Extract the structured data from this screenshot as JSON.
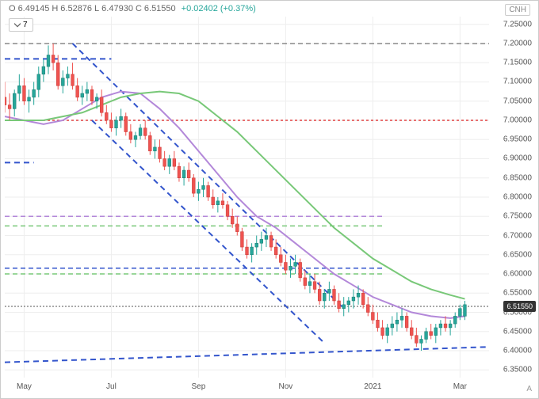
{
  "header": {
    "open_label": "O",
    "open": "6.49145",
    "high_label": "H",
    "high": "6.52876",
    "low_label": "L",
    "low": "6.47930",
    "close_label": "C",
    "close": "6.51550",
    "change": "+0.02402",
    "change_pct": "(+0.37%)",
    "change_color": "#26a69a"
  },
  "currency_label": "CNH",
  "dropdown_value": "7",
  "attribution": "A",
  "current_price": "6.51550",
  "chart": {
    "type": "candlestick",
    "xlim": [
      0,
      100
    ],
    "ylim": [
      6.33,
      7.27
    ],
    "background_color": "#ffffff",
    "grid_color": "#eeeeee",
    "y_ticks": [
      6.35,
      6.4,
      6.45,
      6.5,
      6.55,
      6.6,
      6.65,
      6.7,
      6.75,
      6.8,
      6.85,
      6.9,
      6.95,
      7.0,
      7.05,
      7.1,
      7.15,
      7.2,
      7.25
    ],
    "y_tick_labels": [
      "6.35000",
      "6.40000",
      "6.45000",
      "6.50000",
      "6.55000",
      "6.60000",
      "6.65000",
      "6.70000",
      "6.75000",
      "6.80000",
      "6.85000",
      "6.90000",
      "6.95000",
      "7.00000",
      "7.05000",
      "7.10000",
      "7.15000",
      "7.20000",
      "7.25000"
    ],
    "x_ticks": [
      4,
      22,
      40,
      58,
      76,
      94
    ],
    "x_tick_labels": [
      "May",
      "Jul",
      "Sep",
      "Nov",
      "2021",
      "Mar"
    ],
    "candle_up_color": "#26a69a",
    "candle_down_color": "#ef5350",
    "candle_up_border": "#1a7a6f",
    "candle_down_border": "#c83b38",
    "wick_color_up": "#26a69a",
    "wick_color_down": "#ef5350",
    "moving_averages": [
      {
        "color": "#b388d9",
        "width": 2,
        "points": [
          [
            0,
            7.01
          ],
          [
            4,
            7.0
          ],
          [
            8,
            6.99
          ],
          [
            12,
            7.0
          ],
          [
            16,
            7.03
          ],
          [
            20,
            7.06
          ],
          [
            24,
            7.075
          ],
          [
            28,
            7.07
          ],
          [
            32,
            7.03
          ],
          [
            36,
            6.98
          ],
          [
            40,
            6.92
          ],
          [
            44,
            6.86
          ],
          [
            48,
            6.8
          ],
          [
            52,
            6.75
          ],
          [
            56,
            6.72
          ],
          [
            60,
            6.68
          ],
          [
            64,
            6.64
          ],
          [
            68,
            6.6
          ],
          [
            72,
            6.57
          ],
          [
            76,
            6.54
          ],
          [
            80,
            6.52
          ],
          [
            84,
            6.5
          ],
          [
            88,
            6.49
          ],
          [
            92,
            6.485
          ],
          [
            95,
            6.49
          ]
        ]
      },
      {
        "color": "#78c878",
        "width": 2,
        "points": [
          [
            0,
            7.0
          ],
          [
            4,
            7.0
          ],
          [
            8,
            7.0
          ],
          [
            12,
            7.01
          ],
          [
            16,
            7.02
          ],
          [
            20,
            7.04
          ],
          [
            24,
            7.06
          ],
          [
            28,
            7.07
          ],
          [
            32,
            7.075
          ],
          [
            36,
            7.07
          ],
          [
            40,
            7.05
          ],
          [
            44,
            7.01
          ],
          [
            48,
            6.97
          ],
          [
            52,
            6.92
          ],
          [
            56,
            6.87
          ],
          [
            60,
            6.82
          ],
          [
            64,
            6.77
          ],
          [
            68,
            6.72
          ],
          [
            72,
            6.68
          ],
          [
            76,
            6.64
          ],
          [
            80,
            6.61
          ],
          [
            84,
            6.58
          ],
          [
            88,
            6.56
          ],
          [
            92,
            6.545
          ],
          [
            95,
            6.535
          ]
        ]
      }
    ],
    "horizontal_lines": [
      {
        "y": 7.2,
        "color": "#888888",
        "dash": "6,4",
        "width": 1.5
      },
      {
        "y": 7.0,
        "color": "#e04040",
        "dash": "3,3",
        "width": 1.5
      },
      {
        "y": 6.75,
        "color": "#b388d9",
        "dash": "6,4",
        "width": 1.5,
        "x_end": 78
      },
      {
        "y": 6.725,
        "color": "#78c878",
        "dash": "6,4",
        "width": 1.5,
        "x_end": 78
      },
      {
        "y": 6.615,
        "color": "#3355cc",
        "dash": "6,4",
        "width": 1.5,
        "x_end": 78
      },
      {
        "y": 6.6,
        "color": "#78c878",
        "dash": "6,4",
        "width": 1.5,
        "x_end": 78
      },
      {
        "y": 6.5155,
        "color": "#555555",
        "dash": "2,2",
        "width": 1
      }
    ],
    "channel_lines": [
      {
        "x1": 0,
        "y1": 7.16,
        "x2": 22,
        "y2": 7.16,
        "color": "#3355cc",
        "dash": "7,5",
        "width": 2
      },
      {
        "x1": 0,
        "y1": 6.89,
        "x2": 6,
        "y2": 6.89,
        "color": "#3355cc",
        "dash": "7,5",
        "width": 2
      },
      {
        "x1": 14,
        "y1": 7.2,
        "x2": 70,
        "y2": 6.51,
        "color": "#3355cc",
        "dash": "7,5",
        "width": 2
      },
      {
        "x1": 18,
        "y1": 7.0,
        "x2": 66,
        "y2": 6.42,
        "color": "#3355cc",
        "dash": "7,5",
        "width": 2
      },
      {
        "x1": 0,
        "y1": 6.37,
        "x2": 100,
        "y2": 6.41,
        "color": "#3355cc",
        "dash": "7,5",
        "width": 2
      }
    ],
    "candles": [
      {
        "x": 0,
        "o": 7.06,
        "h": 7.1,
        "l": 7.02,
        "c": 7.04
      },
      {
        "x": 1,
        "o": 7.04,
        "h": 7.07,
        "l": 7.0,
        "c": 7.03
      },
      {
        "x": 2,
        "o": 7.03,
        "h": 7.08,
        "l": 7.01,
        "c": 7.07
      },
      {
        "x": 3,
        "o": 7.07,
        "h": 7.12,
        "l": 7.05,
        "c": 7.09
      },
      {
        "x": 4,
        "o": 7.09,
        "h": 7.11,
        "l": 7.04,
        "c": 7.05
      },
      {
        "x": 5,
        "o": 7.05,
        "h": 7.08,
        "l": 7.02,
        "c": 7.06
      },
      {
        "x": 6,
        "o": 7.06,
        "h": 7.1,
        "l": 7.04,
        "c": 7.08
      },
      {
        "x": 7,
        "o": 7.08,
        "h": 7.14,
        "l": 7.06,
        "c": 7.12
      },
      {
        "x": 8,
        "o": 7.12,
        "h": 7.16,
        "l": 7.1,
        "c": 7.14
      },
      {
        "x": 9,
        "o": 7.14,
        "h": 7.195,
        "l": 7.12,
        "c": 7.17
      },
      {
        "x": 10,
        "o": 7.17,
        "h": 7.2,
        "l": 7.13,
        "c": 7.15
      },
      {
        "x": 11,
        "o": 7.15,
        "h": 7.17,
        "l": 7.08,
        "c": 7.09
      },
      {
        "x": 12,
        "o": 7.09,
        "h": 7.13,
        "l": 7.07,
        "c": 7.11
      },
      {
        "x": 13,
        "o": 7.11,
        "h": 7.14,
        "l": 7.09,
        "c": 7.12
      },
      {
        "x": 14,
        "o": 7.12,
        "h": 7.15,
        "l": 7.08,
        "c": 7.09
      },
      {
        "x": 15,
        "o": 7.09,
        "h": 7.11,
        "l": 7.05,
        "c": 7.06
      },
      {
        "x": 16,
        "o": 7.06,
        "h": 7.09,
        "l": 7.04,
        "c": 7.07
      },
      {
        "x": 17,
        "o": 7.07,
        "h": 7.1,
        "l": 7.05,
        "c": 7.08
      },
      {
        "x": 18,
        "o": 7.08,
        "h": 7.09,
        "l": 7.04,
        "c": 7.05
      },
      {
        "x": 19,
        "o": 7.05,
        "h": 7.07,
        "l": 7.03,
        "c": 7.06
      },
      {
        "x": 20,
        "o": 7.06,
        "h": 7.08,
        "l": 7.01,
        "c": 7.02
      },
      {
        "x": 21,
        "o": 7.02,
        "h": 7.04,
        "l": 6.99,
        "c": 7.0
      },
      {
        "x": 22,
        "o": 7.0,
        "h": 7.02,
        "l": 6.97,
        "c": 6.98
      },
      {
        "x": 23,
        "o": 6.98,
        "h": 7.01,
        "l": 6.96,
        "c": 7.0
      },
      {
        "x": 24,
        "o": 7.0,
        "h": 7.03,
        "l": 6.98,
        "c": 7.01
      },
      {
        "x": 25,
        "o": 7.01,
        "h": 7.02,
        "l": 6.96,
        "c": 6.97
      },
      {
        "x": 26,
        "o": 6.97,
        "h": 6.99,
        "l": 6.94,
        "c": 6.95
      },
      {
        "x": 27,
        "o": 6.95,
        "h": 6.97,
        "l": 6.93,
        "c": 6.96
      },
      {
        "x": 28,
        "o": 6.96,
        "h": 6.99,
        "l": 6.95,
        "c": 6.98
      },
      {
        "x": 29,
        "o": 6.98,
        "h": 7.0,
        "l": 6.95,
        "c": 6.96
      },
      {
        "x": 30,
        "o": 6.96,
        "h": 6.97,
        "l": 6.91,
        "c": 6.92
      },
      {
        "x": 31,
        "o": 6.92,
        "h": 6.95,
        "l": 6.9,
        "c": 6.93
      },
      {
        "x": 32,
        "o": 6.93,
        "h": 6.95,
        "l": 6.89,
        "c": 6.9
      },
      {
        "x": 33,
        "o": 6.9,
        "h": 6.92,
        "l": 6.87,
        "c": 6.88
      },
      {
        "x": 34,
        "o": 6.88,
        "h": 6.91,
        "l": 6.86,
        "c": 6.9
      },
      {
        "x": 35,
        "o": 6.9,
        "h": 6.92,
        "l": 6.87,
        "c": 6.88
      },
      {
        "x": 36,
        "o": 6.88,
        "h": 6.89,
        "l": 6.84,
        "c": 6.85
      },
      {
        "x": 37,
        "o": 6.85,
        "h": 6.88,
        "l": 6.83,
        "c": 6.87
      },
      {
        "x": 38,
        "o": 6.87,
        "h": 6.89,
        "l": 6.84,
        "c": 6.85
      },
      {
        "x": 39,
        "o": 6.85,
        "h": 6.86,
        "l": 6.8,
        "c": 6.81
      },
      {
        "x": 40,
        "o": 6.81,
        "h": 6.84,
        "l": 6.79,
        "c": 6.82
      },
      {
        "x": 41,
        "o": 6.82,
        "h": 6.85,
        "l": 6.8,
        "c": 6.83
      },
      {
        "x": 42,
        "o": 6.83,
        "h": 6.84,
        "l": 6.79,
        "c": 6.8
      },
      {
        "x": 43,
        "o": 6.8,
        "h": 6.82,
        "l": 6.77,
        "c": 6.78
      },
      {
        "x": 44,
        "o": 6.78,
        "h": 6.8,
        "l": 6.76,
        "c": 6.79
      },
      {
        "x": 45,
        "o": 6.79,
        "h": 6.81,
        "l": 6.77,
        "c": 6.78
      },
      {
        "x": 46,
        "o": 6.78,
        "h": 6.79,
        "l": 6.74,
        "c": 6.75
      },
      {
        "x": 47,
        "o": 6.75,
        "h": 6.77,
        "l": 6.72,
        "c": 6.73
      },
      {
        "x": 48,
        "o": 6.73,
        "h": 6.75,
        "l": 6.7,
        "c": 6.71
      },
      {
        "x": 49,
        "o": 6.71,
        "h": 6.72,
        "l": 6.66,
        "c": 6.67
      },
      {
        "x": 50,
        "o": 6.67,
        "h": 6.69,
        "l": 6.64,
        "c": 6.65
      },
      {
        "x": 51,
        "o": 6.65,
        "h": 6.68,
        "l": 6.63,
        "c": 6.67
      },
      {
        "x": 52,
        "o": 6.67,
        "h": 6.7,
        "l": 6.65,
        "c": 6.68
      },
      {
        "x": 53,
        "o": 6.68,
        "h": 6.71,
        "l": 6.66,
        "c": 6.69
      },
      {
        "x": 54,
        "o": 6.69,
        "h": 6.72,
        "l": 6.67,
        "c": 6.7
      },
      {
        "x": 55,
        "o": 6.7,
        "h": 6.71,
        "l": 6.66,
        "c": 6.67
      },
      {
        "x": 56,
        "o": 6.67,
        "h": 6.69,
        "l": 6.64,
        "c": 6.65
      },
      {
        "x": 57,
        "o": 6.65,
        "h": 6.67,
        "l": 6.62,
        "c": 6.63
      },
      {
        "x": 58,
        "o": 6.63,
        "h": 6.65,
        "l": 6.6,
        "c": 6.61
      },
      {
        "x": 59,
        "o": 6.61,
        "h": 6.64,
        "l": 6.59,
        "c": 6.62
      },
      {
        "x": 60,
        "o": 6.62,
        "h": 6.65,
        "l": 6.6,
        "c": 6.63
      },
      {
        "x": 61,
        "o": 6.63,
        "h": 6.64,
        "l": 6.58,
        "c": 6.59
      },
      {
        "x": 62,
        "o": 6.59,
        "h": 6.61,
        "l": 6.56,
        "c": 6.57
      },
      {
        "x": 63,
        "o": 6.57,
        "h": 6.6,
        "l": 6.55,
        "c": 6.58
      },
      {
        "x": 64,
        "o": 6.58,
        "h": 6.6,
        "l": 6.55,
        "c": 6.56
      },
      {
        "x": 65,
        "o": 6.56,
        "h": 6.58,
        "l": 6.52,
        "c": 6.53
      },
      {
        "x": 66,
        "o": 6.53,
        "h": 6.56,
        "l": 6.51,
        "c": 6.55
      },
      {
        "x": 67,
        "o": 6.55,
        "h": 6.58,
        "l": 6.53,
        "c": 6.56
      },
      {
        "x": 68,
        "o": 6.56,
        "h": 6.57,
        "l": 6.52,
        "c": 6.53
      },
      {
        "x": 69,
        "o": 6.53,
        "h": 6.55,
        "l": 6.5,
        "c": 6.51
      },
      {
        "x": 70,
        "o": 6.51,
        "h": 6.54,
        "l": 6.49,
        "c": 6.52
      },
      {
        "x": 71,
        "o": 6.52,
        "h": 6.54,
        "l": 6.5,
        "c": 6.53
      },
      {
        "x": 72,
        "o": 6.53,
        "h": 6.56,
        "l": 6.51,
        "c": 6.54
      },
      {
        "x": 73,
        "o": 6.54,
        "h": 6.57,
        "l": 6.52,
        "c": 6.55
      },
      {
        "x": 74,
        "o": 6.55,
        "h": 6.56,
        "l": 6.51,
        "c": 6.52
      },
      {
        "x": 75,
        "o": 6.52,
        "h": 6.54,
        "l": 6.49,
        "c": 6.5
      },
      {
        "x": 76,
        "o": 6.5,
        "h": 6.52,
        "l": 6.47,
        "c": 6.48
      },
      {
        "x": 77,
        "o": 6.48,
        "h": 6.5,
        "l": 6.45,
        "c": 6.46
      },
      {
        "x": 78,
        "o": 6.46,
        "h": 6.48,
        "l": 6.43,
        "c": 6.44
      },
      {
        "x": 79,
        "o": 6.44,
        "h": 6.47,
        "l": 6.42,
        "c": 6.46
      },
      {
        "x": 80,
        "o": 6.46,
        "h": 6.49,
        "l": 6.44,
        "c": 6.47
      },
      {
        "x": 81,
        "o": 6.47,
        "h": 6.5,
        "l": 6.45,
        "c": 6.48
      },
      {
        "x": 82,
        "o": 6.48,
        "h": 6.51,
        "l": 6.46,
        "c": 6.49
      },
      {
        "x": 83,
        "o": 6.49,
        "h": 6.5,
        "l": 6.45,
        "c": 6.46
      },
      {
        "x": 84,
        "o": 6.46,
        "h": 6.48,
        "l": 6.43,
        "c": 6.44
      },
      {
        "x": 85,
        "o": 6.44,
        "h": 6.46,
        "l": 6.41,
        "c": 6.42
      },
      {
        "x": 86,
        "o": 6.42,
        "h": 6.44,
        "l": 6.4,
        "c": 6.43
      },
      {
        "x": 87,
        "o": 6.43,
        "h": 6.46,
        "l": 6.42,
        "c": 6.45
      },
      {
        "x": 88,
        "o": 6.45,
        "h": 6.47,
        "l": 6.43,
        "c": 6.44
      },
      {
        "x": 89,
        "o": 6.44,
        "h": 6.47,
        "l": 6.42,
        "c": 6.46
      },
      {
        "x": 90,
        "o": 6.46,
        "h": 6.48,
        "l": 6.44,
        "c": 6.47
      },
      {
        "x": 91,
        "o": 6.47,
        "h": 6.49,
        "l": 6.45,
        "c": 6.46
      },
      {
        "x": 92,
        "o": 6.46,
        "h": 6.48,
        "l": 6.44,
        "c": 6.47
      },
      {
        "x": 93,
        "o": 6.47,
        "h": 6.5,
        "l": 6.46,
        "c": 6.49
      },
      {
        "x": 94,
        "o": 6.49,
        "h": 6.52,
        "l": 6.48,
        "c": 6.51
      },
      {
        "x": 95,
        "o": 6.49,
        "h": 6.53,
        "l": 6.48,
        "c": 6.52
      }
    ]
  }
}
